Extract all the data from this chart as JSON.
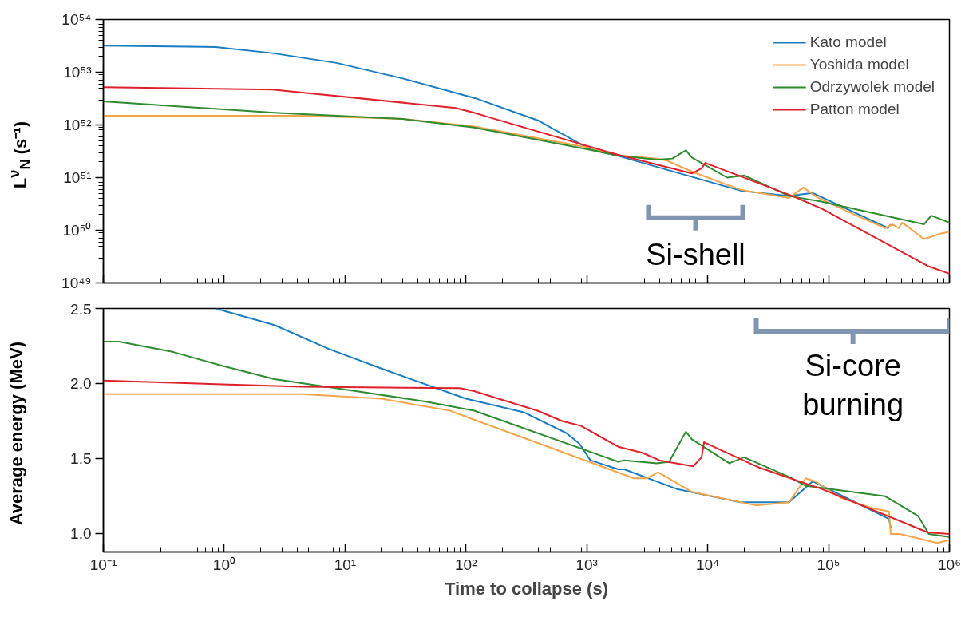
{
  "chart_data": [
    {
      "type": "line",
      "ylabel": "L$^{ν}$$_{N}$ (s⁻¹)",
      "log": "xy",
      "xlim": [
        0.1,
        1000000
      ],
      "ylim": [
        1e+49,
        1e+54
      ],
      "xticks": [
        {
          "value": 0.1,
          "label": null
        },
        {
          "value": 1,
          "label": null
        },
        {
          "value": 10,
          "label": null
        },
        {
          "value": 100,
          "label": null
        },
        {
          "value": 1000,
          "label": null
        },
        {
          "value": 10000,
          "label": null
        },
        {
          "value": 100000,
          "label": null
        },
        {
          "value": 1000000,
          "label": null
        }
      ],
      "yticks": [
        {
          "value": 1e+49,
          "label": "10⁴⁹"
        },
        {
          "value": 1e+50,
          "label": "10⁵⁰"
        },
        {
          "value": 1e+51,
          "label": "10⁵¹"
        },
        {
          "value": 1e+52,
          "label": "10⁵²"
        },
        {
          "value": 1e+53,
          "label": "10⁵³"
        },
        {
          "value": 1e+54,
          "label": "10⁵⁴"
        }
      ],
      "tick_labels": "y",
      "legend": "top right",
      "annotations": [
        "Si-shell"
      ],
      "series": [
        {
          "name": "Kato model",
          "color": "#1a7dc0",
          "x": [
            0.1,
            0.85,
            2.5,
            8.5,
            30,
            120,
            400,
            1050,
            1800,
            19000,
            47000,
            74000,
            310000,
            327000
          ],
          "values": [
            3.2e+53,
            3e+53,
            2.3e+53,
            1.5e+53,
            7.6e+52,
            3.2e+52,
            1.2e+52,
            3.5e+51,
            2.6e+51,
            5.6e+50,
            4.5e+50,
            5.1e+50,
            1.1e+50,
            1.3e+50
          ]
        },
        {
          "name": "Yoshida model",
          "color": "#f4a54a",
          "x": [
            0.1,
            4.4,
            30,
            117,
            1050,
            1900,
            3800,
            4600,
            7400,
            18600,
            47000,
            62000,
            78000,
            162000,
            295000,
            339000,
            380000,
            407000,
            617000,
            851000,
            1000000
          ],
          "values": [
            1.5e+52,
            1.5e+52,
            1.3e+52,
            9.3e+51,
            3.7e+51,
            2.6e+51,
            2.3e+51,
            2.1e+51,
            1.3e+51,
            5.9e+50,
            4.1e+50,
            6.5e+50,
            4.4e+50,
            2e+50,
            1.1e+50,
            1.3e+50,
            1.1e+50,
            1.4e+50,
            6.8e+49,
            8.7e+49,
            9.3e+49
          ]
        },
        {
          "name": "Odrzywolek model",
          "color": "#2e8b2e",
          "x": [
            0.1,
            2.6,
            30,
            117,
            1050,
            1820,
            3800,
            5100,
            6600,
            7400,
            14500,
            20000,
            47000,
            87000,
            617000,
            708000,
            1000000
          ],
          "values": [
            2.8e+52,
            1.7e+52,
            1.3e+52,
            8.9e+51,
            3.4e+51,
            2.6e+51,
            2.2e+51,
            2.3e+51,
            3.3e+51,
            2.4e+51,
            1e+51,
            1.1e+51,
            4.5e+50,
            3.5e+50,
            1.3e+50,
            1.9e+50,
            1.4e+50
          ]
        },
        {
          "name": "Patton model",
          "color": "#e0202a",
          "x": [
            0.1,
            2.5,
            82,
            117,
            155,
            1820,
            7400,
            8900,
            9550,
            50000,
            87000,
            661000,
            1000000
          ],
          "values": [
            5.2e+52,
            4.7e+52,
            2.1e+52,
            1.7e+52,
            1.4e+52,
            2.7e+51,
            1.2e+51,
            1.5e+51,
            1.9e+51,
            4.5e+50,
            2.6e+50,
            2.1e+49,
            1.5e+49
          ]
        }
      ]
    },
    {
      "type": "line",
      "ylabel": "Average energy (MeV)",
      "xlabel": "Time to collapse (s)",
      "log": "x",
      "xlim": [
        0.1,
        1000000
      ],
      "ylim": [
        0.88,
        2.5
      ],
      "xticks": [
        {
          "value": 0.1,
          "label": "10⁻¹"
        },
        {
          "value": 1,
          "label": "10⁰"
        },
        {
          "value": 10,
          "label": "10¹"
        },
        {
          "value": 100,
          "label": "10²"
        },
        {
          "value": 1000,
          "label": "10³"
        },
        {
          "value": 10000,
          "label": "10⁴"
        },
        {
          "value": 100000,
          "label": "10⁵"
        },
        {
          "value": 1000000,
          "label": "10⁶"
        }
      ],
      "yticks": [
        {
          "value": 1,
          "label": "1.0"
        },
        1.5,
        {
          "value": 2,
          "label": "2.0"
        },
        2.5
      ],
      "annotations": [
        "Si-core burning"
      ],
      "series": [
        {
          "color": "#1a7dc0",
          "x": [
            0.85,
            2.6,
            7.4,
            20,
            100,
            300,
            680,
            870,
            1070,
            1820,
            2040,
            5500,
            18600,
            47000,
            74000,
            316000,
            327000
          ],
          "values": [
            2.5,
            2.39,
            2.23,
            2.1,
            1.9,
            1.81,
            1.67,
            1.6,
            1.49,
            1.43,
            1.43,
            1.3,
            1.21,
            1.21,
            1.35,
            1.1,
            1.04
          ]
        },
        {
          "color": "#f4a54a",
          "x": [
            0.1,
            4.4,
            20,
            74,
            100,
            2460,
            3160,
            3890,
            7400,
            25000,
            47000,
            64600,
            77600,
            126000,
            234000,
            316000,
            327000,
            389000,
            794000,
            1000000
          ],
          "values": [
            1.93,
            1.93,
            1.9,
            1.82,
            1.78,
            1.37,
            1.37,
            1.41,
            1.28,
            1.19,
            1.21,
            1.37,
            1.35,
            1.24,
            1.17,
            1.15,
            1.0,
            1.0,
            0.94,
            0.96
          ]
        },
        {
          "color": "#2e8b2e",
          "x": [
            0.1,
            0.135,
            0.38,
            0.95,
            2.6,
            12.3,
            47,
            117,
            1820,
            2040,
            3800,
            4800,
            6600,
            7400,
            15100,
            20000,
            47000,
            64600,
            295000,
            550000,
            676000,
            1000000
          ],
          "values": [
            2.28,
            2.28,
            2.21,
            2.12,
            2.03,
            1.95,
            1.88,
            1.82,
            1.48,
            1.49,
            1.47,
            1.48,
            1.68,
            1.63,
            1.47,
            1.51,
            1.38,
            1.32,
            1.25,
            1.12,
            1.0,
            0.98
          ]
        },
        {
          "color": "#e0202a",
          "x": [
            0.1,
            4.4,
            89,
            117,
            186,
            390,
            631,
            891,
            1820,
            2880,
            3980,
            7590,
            8910,
            9330,
            26900,
            87000,
            661000,
            1000000
          ],
          "values": [
            2.02,
            1.98,
            1.97,
            1.95,
            1.9,
            1.82,
            1.75,
            1.72,
            1.58,
            1.54,
            1.49,
            1.45,
            1.51,
            1.61,
            1.44,
            1.3,
            1.01,
            1.0
          ]
        }
      ]
    }
  ]
}
